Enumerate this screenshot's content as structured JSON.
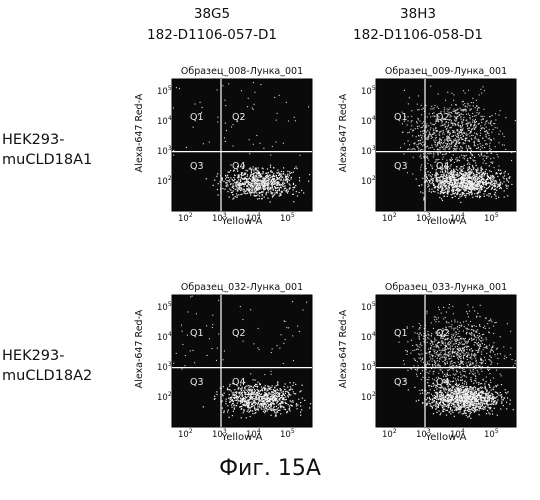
{
  "columns": [
    {
      "clone": "38G5",
      "sample": "182-D1106-057-D1"
    },
    {
      "clone": "38H3",
      "sample": "182-D1106-058-D1"
    }
  ],
  "rows": [
    {
      "line1": "HEK293-",
      "line2": "muCLD18A1"
    },
    {
      "line1": "HEK293-",
      "line2": "muCLD18A2"
    }
  ],
  "panels": [
    {
      "title": "Образец_008-Лунка_001",
      "density": "low"
    },
    {
      "title": "Образец_009-Лунка_001",
      "density": "high"
    },
    {
      "title": "Образец_032-Лунка_001",
      "density": "low"
    },
    {
      "title": "Образец_033-Лунка_001",
      "density": "high"
    }
  ],
  "axes": {
    "x_label": "Yellow-A",
    "y_label": "Alexa-647 Red-A"
  },
  "quadrants": [
    "Q1",
    "Q2",
    "Q3",
    "Q4"
  ],
  "x_ticks": [
    "2",
    "3",
    "4",
    "5"
  ],
  "y_ticks": [
    "5",
    "4",
    "3",
    "2"
  ],
  "tick_base": "10",
  "caption": "Фиг. 15A"
}
